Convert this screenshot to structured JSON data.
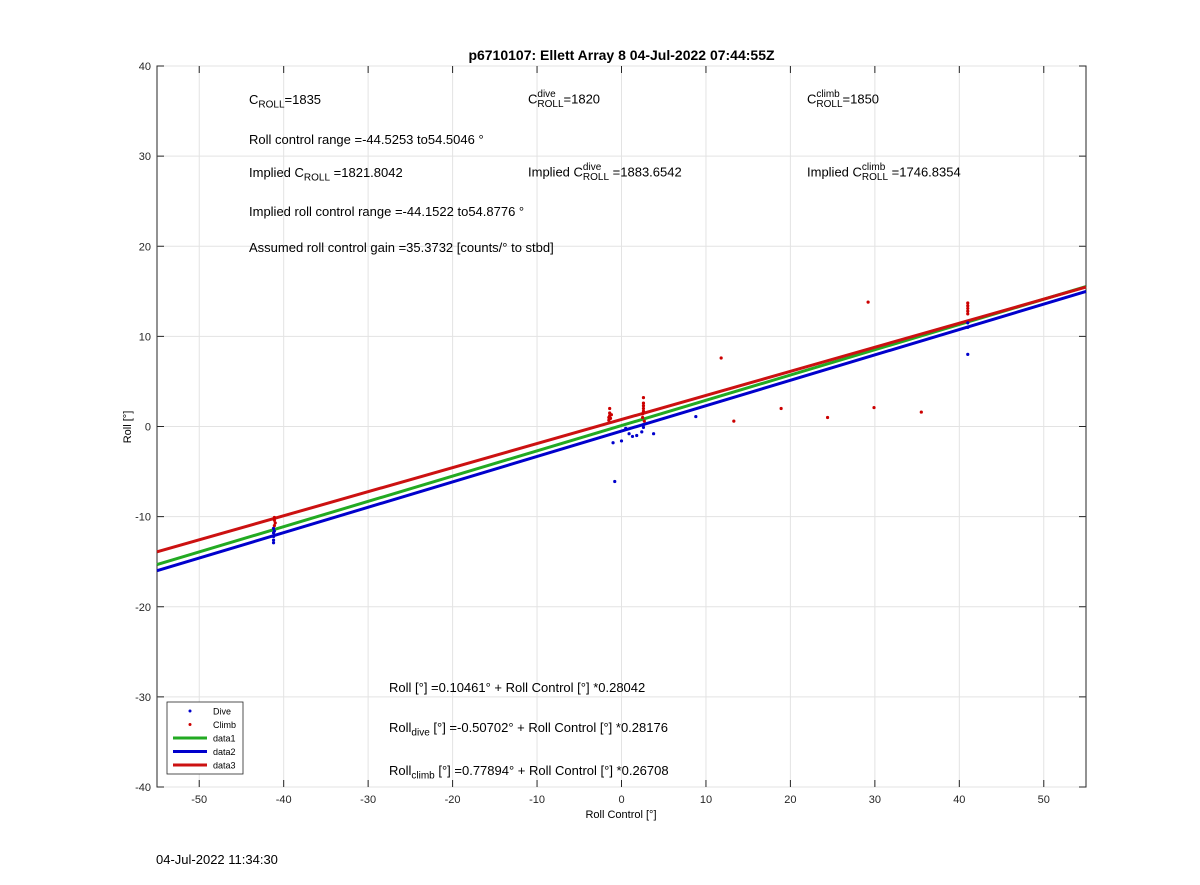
{
  "chart_data": {
    "type": "scatter",
    "title": "p6710107: Ellett Array 8 04-Jul-2022 07:44:55Z",
    "xlabel": "Roll Control [°]",
    "ylabel": "Roll [°]",
    "xlim": [
      -55,
      55
    ],
    "ylim": [
      -40,
      40
    ],
    "x_ticks": [
      -50,
      -40,
      -30,
      -20,
      -10,
      0,
      10,
      20,
      30,
      40,
      50
    ],
    "y_ticks": [
      -40,
      -30,
      -20,
      -10,
      0,
      10,
      20,
      30,
      40
    ],
    "grid": true,
    "legend_position": "bottom-left",
    "series": [
      {
        "name": "Dive",
        "kind": "points",
        "color": "#0000cc",
        "points": [
          [
            -41.2,
            -11.3
          ],
          [
            -41.2,
            -11.8
          ],
          [
            -41.2,
            -12.2
          ],
          [
            -41.2,
            -12.6
          ],
          [
            -41.2,
            -12.9
          ],
          [
            -41.1,
            -11.6
          ],
          [
            -1.0,
            -1.8
          ],
          [
            -0.8,
            -6.1
          ],
          [
            0.0,
            -1.6
          ],
          [
            0.5,
            -0.2
          ],
          [
            0.9,
            -0.8
          ],
          [
            1.3,
            -1.1
          ],
          [
            1.8,
            -1.0
          ],
          [
            2.4,
            -0.6
          ],
          [
            2.6,
            -0.1
          ],
          [
            2.6,
            0.2
          ],
          [
            3.8,
            -0.8
          ],
          [
            8.8,
            1.1
          ],
          [
            41.0,
            11.0
          ],
          [
            41.0,
            11.5
          ],
          [
            41.0,
            8.0
          ]
        ]
      },
      {
        "name": "Climb",
        "kind": "points",
        "color": "#cc0000",
        "points": [
          [
            -41.1,
            -10.1
          ],
          [
            -41.1,
            -10.4
          ],
          [
            -41.0,
            -10.7
          ],
          [
            -41.1,
            -11.0
          ],
          [
            -1.5,
            0.7
          ],
          [
            -1.5,
            1.0
          ],
          [
            -1.4,
            1.2
          ],
          [
            -1.4,
            1.5
          ],
          [
            -1.4,
            2.0
          ],
          [
            -1.3,
            0.9
          ],
          [
            -1.2,
            1.3
          ],
          [
            2.5,
            1.0
          ],
          [
            2.5,
            1.4
          ],
          [
            2.6,
            1.7
          ],
          [
            2.6,
            2.0
          ],
          [
            2.6,
            2.3
          ],
          [
            2.6,
            2.6
          ],
          [
            2.6,
            3.2
          ],
          [
            2.7,
            0.6
          ],
          [
            11.8,
            7.6
          ],
          [
            13.3,
            0.6
          ],
          [
            18.9,
            2.0
          ],
          [
            24.4,
            1.0
          ],
          [
            29.2,
            13.8
          ],
          [
            29.9,
            2.1
          ],
          [
            35.5,
            1.6
          ],
          [
            41.0,
            12.8
          ],
          [
            41.0,
            13.1
          ],
          [
            41.0,
            13.4
          ],
          [
            41.0,
            13.7
          ],
          [
            41.0,
            12.5
          ]
        ]
      },
      {
        "name": "data1",
        "kind": "line",
        "color": "#22aa22",
        "intercept": 0.10461,
        "slope": 0.28042
      },
      {
        "name": "data2",
        "kind": "line",
        "color": "#0000cc",
        "intercept": -0.50702,
        "slope": 0.28176
      },
      {
        "name": "data3",
        "kind": "line",
        "color": "#cc1111",
        "intercept": 0.77894,
        "slope": 0.26708
      }
    ]
  },
  "annotations": {
    "c_roll_label": "C",
    "c_roll_sub": "ROLL",
    "c_roll_value": "=1835",
    "c_dive_label": "C",
    "c_dive_sup": "dive",
    "c_dive_sub": "ROLL",
    "c_dive_value": "=1820",
    "c_climb_label": "C",
    "c_climb_sup": "climb",
    "c_climb_sub": "ROLL",
    "c_climb_value": "=1850",
    "range": "Roll control range =-44.5253 to54.5046 °",
    "implied_prefix": "Implied C",
    "implied_sub": "ROLL",
    "implied_value": " =1821.8042",
    "implied_dive_prefix": "Implied C",
    "implied_dive_sup": "dive",
    "implied_dive_sub": "ROLL",
    "implied_dive_value": " =1883.6542",
    "implied_climb_prefix": "Implied C",
    "implied_climb_sup": "climb",
    "implied_climb_sub": "ROLL",
    "implied_climb_value": " =1746.8354",
    "implied_range": "Implied roll control range =-44.1522 to54.8776 °",
    "gain": "Assumed roll control gain =35.3732 [counts/° to stbd]",
    "eq1": "Roll [°] =0.10461° + Roll Control [°] *0.28042",
    "eq2_prefix": "Roll",
    "eq2_sub": "dive",
    "eq2_rest": " [°] =-0.50702° + Roll Control [°] *0.28176",
    "eq3_prefix": "Roll",
    "eq3_sub": "climb",
    "eq3_rest": " [°] =0.77894° + Roll Control [°] *0.26708"
  },
  "footer": {
    "timestamp": "04-Jul-2022 11:34:30"
  }
}
